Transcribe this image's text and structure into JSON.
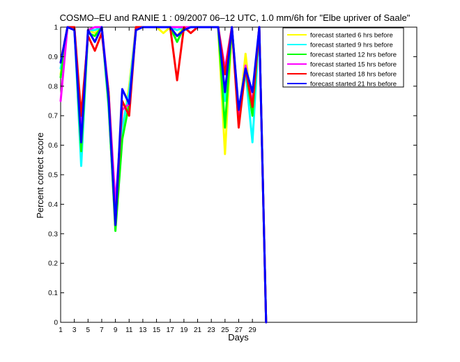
{
  "chart_data": {
    "type": "line",
    "title": "COSMO–EU and RANIE 1 : 09/2007 06–12 UTC, 1.0 mm/6h for \"Elbe upriver of Saale\"",
    "xlabel": "Days",
    "ylabel": "Percent correct score",
    "xlim": [
      1,
      53
    ],
    "ylim": [
      0,
      1
    ],
    "x_ticks": [
      1,
      3,
      5,
      7,
      9,
      11,
      13,
      15,
      17,
      19,
      21,
      23,
      25,
      27,
      29
    ],
    "x_tick_labels": [
      "1",
      "3",
      "5",
      "7",
      "9",
      "11",
      "13",
      "15",
      "17",
      "19",
      "21",
      "23",
      "25",
      "27",
      "29"
    ],
    "y_ticks": [
      0,
      0.1,
      0.2,
      0.3,
      0.4,
      0.5,
      0.6,
      0.7,
      0.8,
      0.9,
      1
    ],
    "y_tick_labels": [
      "0",
      "0.1",
      "0.2",
      "0.3",
      "0.4",
      "0.5",
      "0.6",
      "0.7",
      "0.8",
      "0.9",
      "1"
    ],
    "grid": false,
    "legend_position": "top-right",
    "x": [
      1,
      2,
      3,
      4,
      5,
      6,
      7,
      8,
      9,
      10,
      11,
      12,
      13,
      14,
      15,
      16,
      17,
      18,
      19,
      20,
      21,
      22,
      23,
      24,
      25,
      26,
      27,
      28,
      29,
      30,
      31
    ],
    "series": [
      {
        "name": "forecast started 6 hrs before",
        "color": "#ffff00",
        "values": [
          0.84,
          1,
          1,
          0.6,
          0.99,
          0.98,
          1,
          0.75,
          0.32,
          0.65,
          0.8,
          1,
          1,
          1,
          1,
          0.98,
          1,
          0.97,
          1,
          1,
          1,
          1,
          1,
          1,
          0.57,
          1,
          0.68,
          0.91,
          0.7,
          1,
          0
        ]
      },
      {
        "name": "forecast started 9 hrs before",
        "color": "#00ffff",
        "values": [
          0.86,
          1,
          1,
          0.53,
          0.99,
          0.99,
          1,
          0.73,
          0.33,
          0.66,
          0.78,
          1,
          1,
          1,
          1,
          1,
          1,
          0.99,
          1,
          1,
          1,
          1,
          1,
          1,
          0.75,
          1,
          0.7,
          0.85,
          0.61,
          1,
          0
        ]
      },
      {
        "name": "forecast started 12 hrs before",
        "color": "#00ff00",
        "values": [
          0.83,
          1,
          1,
          0.58,
          0.98,
          0.97,
          1,
          0.74,
          0.31,
          0.62,
          0.74,
          1,
          1,
          1,
          1,
          1,
          1,
          0.95,
          1,
          1,
          1,
          1,
          1,
          1,
          0.66,
          1,
          0.71,
          0.86,
          0.7,
          1,
          0
        ]
      },
      {
        "name": "forecast started 15 hrs before",
        "color": "#ff00ff",
        "values": [
          0.75,
          1,
          1,
          0.65,
          0.99,
          1,
          1,
          0.78,
          0.4,
          0.72,
          0.74,
          1,
          1,
          1,
          1,
          1,
          1,
          1,
          1,
          1,
          1,
          1,
          1,
          1,
          0.86,
          1,
          0.68,
          0.87,
          0.74,
          1,
          0
        ]
      },
      {
        "name": "forecast started 18 hrs before",
        "color": "#ff0000",
        "values": [
          0.88,
          1,
          1,
          0.7,
          0.97,
          0.92,
          0.98,
          0.78,
          0.33,
          0.75,
          0.7,
          1,
          1,
          1,
          1,
          1,
          1,
          0.82,
          1,
          0.98,
          1,
          1,
          1,
          1,
          0.84,
          1,
          0.66,
          0.86,
          0.73,
          1,
          0
        ]
      },
      {
        "name": "forecast started 21 hrs before",
        "color": "#0000ff",
        "values": [
          0.88,
          1,
          0.99,
          0.61,
          0.99,
          0.95,
          1,
          0.76,
          0.33,
          0.79,
          0.74,
          0.99,
          1,
          1,
          1,
          1,
          1,
          0.97,
          0.99,
          1,
          1,
          1,
          1,
          1,
          0.78,
          1,
          0.72,
          0.86,
          0.78,
          1,
          0
        ]
      }
    ]
  }
}
